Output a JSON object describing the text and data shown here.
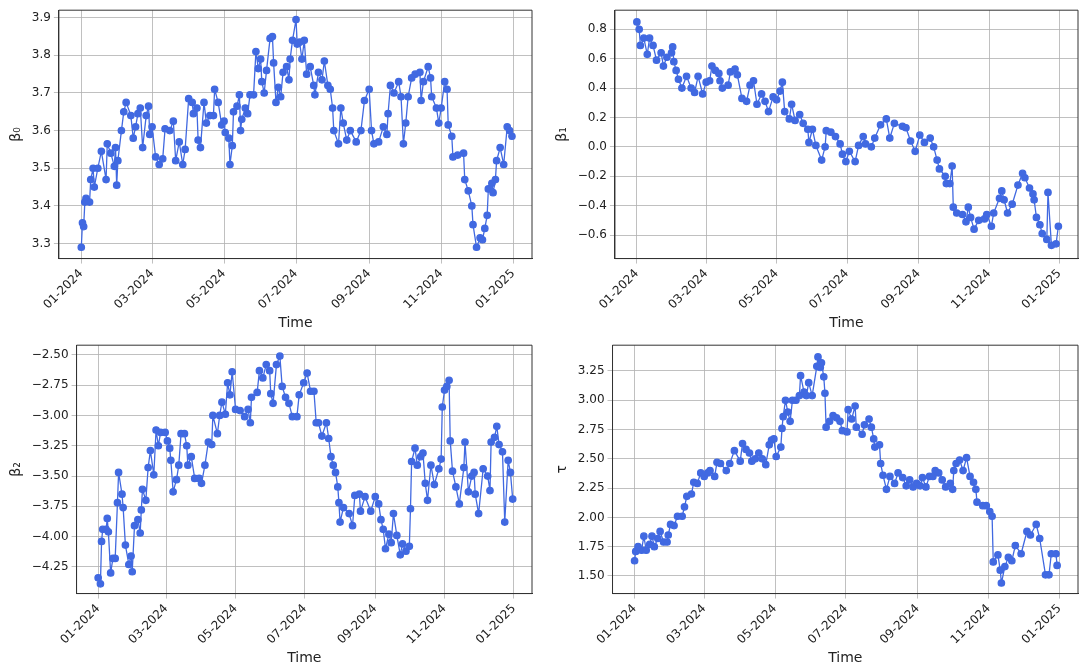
{
  "chart_data": [
    {
      "type": "line",
      "xlabel": "Time",
      "ylabel": "β₀",
      "grid": true,
      "marker": "circle",
      "line_style": "solid",
      "xlim": [
        "2023-12-13",
        "2025-01-17"
      ],
      "xticks": [
        {
          "value": "2024-01-01",
          "label": "01-2024"
        },
        {
          "value": "2024-03-01",
          "label": "03-2024"
        },
        {
          "value": "2024-05-01",
          "label": "05-2024"
        },
        {
          "value": "2024-07-01",
          "label": "07-2024"
        },
        {
          "value": "2024-09-01",
          "label": "09-2024"
        },
        {
          "value": "2024-11-01",
          "label": "11-2024"
        },
        {
          "value": "2025-01-01",
          "label": "01-2025"
        }
      ],
      "ylim": [
        3.26,
        3.92
      ],
      "yticks": [
        3.3,
        3.4,
        3.5,
        3.6,
        3.7,
        3.8,
        3.9
      ],
      "x": [
        "2024-01-01",
        "2024-01-02",
        "2024-01-03",
        "2024-01-04",
        "2024-01-05",
        "2024-01-08",
        "2024-01-09",
        "2024-01-11",
        "2024-01-12",
        "2024-01-15",
        "2024-01-18",
        "2024-01-22",
        "2024-01-23",
        "2024-01-26",
        "2024-01-29",
        "2024-01-30",
        "2024-01-31",
        "2024-02-01",
        "2024-02-04",
        "2024-02-06",
        "2024-02-08",
        "2024-02-12",
        "2024-02-14",
        "2024-02-16",
        "2024-02-18",
        "2024-02-20",
        "2024-02-22",
        "2024-02-25",
        "2024-02-27",
        "2024-02-28",
        "2024-03-01",
        "2024-03-04",
        "2024-03-07",
        "2024-03-10",
        "2024-03-12",
        "2024-03-16",
        "2024-03-19",
        "2024-03-21",
        "2024-03-24",
        "2024-03-27",
        "2024-03-29",
        "2024-04-01",
        "2024-04-04",
        "2024-04-05",
        "2024-04-08",
        "2024-04-09",
        "2024-04-11",
        "2024-04-14",
        "2024-04-16",
        "2024-04-19",
        "2024-04-22",
        "2024-04-23",
        "2024-04-26",
        "2024-04-29",
        "2024-05-01",
        "2024-05-02",
        "2024-05-05",
        "2024-05-06",
        "2024-05-08",
        "2024-05-09",
        "2024-05-12",
        "2024-05-14",
        "2024-05-15",
        "2024-05-16",
        "2024-05-19",
        "2024-05-21",
        "2024-05-23",
        "2024-05-26",
        "2024-05-28",
        "2024-05-30",
        "2024-06-01",
        "2024-06-02",
        "2024-06-04",
        "2024-06-06",
        "2024-06-09",
        "2024-06-11",
        "2024-06-12",
        "2024-06-14",
        "2024-06-16",
        "2024-06-18",
        "2024-06-20",
        "2024-06-23",
        "2024-06-25",
        "2024-06-26",
        "2024-06-28",
        "2024-07-01",
        "2024-07-02",
        "2024-07-04",
        "2024-07-06",
        "2024-07-08",
        "2024-07-10",
        "2024-07-13",
        "2024-07-16",
        "2024-07-17",
        "2024-07-20",
        "2024-07-23",
        "2024-07-25",
        "2024-07-28",
        "2024-07-30",
        "2024-08-01",
        "2024-08-02",
        "2024-08-06",
        "2024-08-08",
        "2024-08-10",
        "2024-08-13",
        "2024-08-16",
        "2024-08-21",
        "2024-08-25",
        "2024-08-28",
        "2024-09-01",
        "2024-09-03",
        "2024-09-05",
        "2024-09-09",
        "2024-09-13",
        "2024-09-16",
        "2024-09-17",
        "2024-09-19",
        "2024-09-22",
        "2024-09-26",
        "2024-09-28",
        "2024-09-30",
        "2024-10-02",
        "2024-10-04",
        "2024-10-07",
        "2024-10-10",
        "2024-10-14",
        "2024-10-15",
        "2024-10-17",
        "2024-10-21",
        "2024-10-23",
        "2024-10-24",
        "2024-10-28",
        "2024-10-30",
        "2024-11-01",
        "2024-11-04",
        "2024-11-06",
        "2024-11-07",
        "2024-11-10",
        "2024-11-11",
        "2024-11-15",
        "2024-11-20",
        "2024-11-21",
        "2024-11-24",
        "2024-11-27",
        "2024-11-28",
        "2024-12-01",
        "2024-12-04",
        "2024-12-06",
        "2024-12-08",
        "2024-12-10",
        "2024-12-11",
        "2024-12-14",
        "2024-12-15",
        "2024-12-17",
        "2024-12-18",
        "2024-12-21",
        "2024-12-24",
        "2024-12-27",
        "2024-12-29",
        "2024-12-31"
      ],
      "series": [
        {
          "color": "#4169e1",
          "values": [
            3.29,
            3.355,
            3.345,
            3.41,
            3.42,
            3.41,
            3.47,
            3.5,
            3.45,
            3.5,
            3.545,
            3.47,
            3.565,
            3.54,
            3.505,
            3.555,
            3.455,
            3.52,
            3.6,
            3.65,
            3.675,
            3.64,
            3.58,
            3.61,
            3.645,
            3.66,
            3.555,
            3.64,
            3.665,
            3.59,
            3.61,
            3.53,
            3.51,
            3.525,
            3.605,
            3.6,
            3.625,
            3.52,
            3.57,
            3.51,
            3.55,
            3.685,
            3.675,
            3.645,
            3.66,
            3.575,
            3.555,
            3.675,
            3.62,
            3.64,
            3.64,
            3.71,
            3.675,
            3.615,
            3.625,
            3.595,
            3.58,
            3.51,
            3.56,
            3.65,
            3.665,
            3.695,
            3.6,
            3.63,
            3.66,
            3.645,
            3.695,
            3.695,
            3.81,
            3.765,
            3.79,
            3.73,
            3.7,
            3.76,
            3.845,
            3.85,
            3.78,
            3.675,
            3.715,
            3.69,
            3.755,
            3.77,
            3.735,
            3.79,
            3.84,
            3.895,
            3.83,
            3.835,
            3.79,
            3.84,
            3.75,
            3.77,
            3.72,
            3.695,
            3.755,
            3.735,
            3.785,
            3.72,
            3.71,
            3.66,
            3.6,
            3.565,
            3.66,
            3.62,
            3.575,
            3.6,
            3.57,
            3.6,
            3.68,
            3.71,
            3.6,
            3.565,
            3.57,
            3.61,
            3.59,
            3.645,
            3.72,
            3.7,
            3.73,
            3.69,
            3.565,
            3.62,
            3.69,
            3.74,
            3.75,
            3.755,
            3.68,
            3.73,
            3.77,
            3.74,
            3.69,
            3.66,
            3.62,
            3.66,
            3.73,
            3.71,
            3.615,
            3.585,
            3.53,
            3.535,
            3.54,
            3.47,
            3.44,
            3.4,
            3.35,
            3.29,
            3.315,
            3.31,
            3.34,
            3.375,
            3.445,
            3.46,
            3.435,
            3.47,
            3.52,
            3.555,
            3.51,
            3.61,
            3.6,
            3.585
          ]
        }
      ]
    },
    {
      "type": "line",
      "xlabel": "Time",
      "ylabel": "β₁",
      "grid": true,
      "marker": "circle",
      "line_style": "solid",
      "xlim": [
        "2023-12-13",
        "2025-01-17"
      ],
      "xticks": [
        {
          "value": "2024-01-01",
          "label": "01-2024"
        },
        {
          "value": "2024-03-01",
          "label": "03-2024"
        },
        {
          "value": "2024-05-01",
          "label": "05-2024"
        },
        {
          "value": "2024-07-01",
          "label": "07-2024"
        },
        {
          "value": "2024-09-01",
          "label": "09-2024"
        },
        {
          "value": "2024-11-01",
          "label": "11-2024"
        },
        {
          "value": "2025-01-01",
          "label": "01-2025"
        }
      ],
      "ylim": [
        -0.76,
        0.93
      ],
      "yticks": [
        {
          "value": -0.6,
          "label": "−0.6"
        },
        {
          "value": -0.4,
          "label": "−0.4"
        },
        {
          "value": -0.2,
          "label": "−0.2"
        },
        {
          "value": 0,
          "label": "0.0"
        },
        {
          "value": 0.2,
          "label": "0.2"
        },
        {
          "value": 0.4,
          "label": "0.4"
        },
        {
          "value": 0.6,
          "label": "0.6"
        },
        {
          "value": 0.8,
          "label": "0.8"
        }
      ],
      "x": [
        "2024-01-01",
        "2024-01-03",
        "2024-01-04",
        "2024-01-07",
        "2024-01-10",
        "2024-01-12",
        "2024-01-15",
        "2024-01-18",
        "2024-01-22",
        "2024-01-24",
        "2024-01-27",
        "2024-01-31",
        "2024-02-01",
        "2024-02-02",
        "2024-02-04",
        "2024-02-06",
        "2024-02-09",
        "2024-02-13",
        "2024-02-17",
        "2024-02-20",
        "2024-02-23",
        "2024-02-27",
        "2024-03-01",
        "2024-03-04",
        "2024-03-06",
        "2024-03-09",
        "2024-03-12",
        "2024-03-13",
        "2024-03-15",
        "2024-03-20",
        "2024-03-22",
        "2024-03-26",
        "2024-03-28",
        "2024-04-01",
        "2024-04-05",
        "2024-04-08",
        "2024-04-11",
        "2024-04-14",
        "2024-04-18",
        "2024-04-21",
        "2024-04-24",
        "2024-04-28",
        "2024-05-01",
        "2024-05-04",
        "2024-05-06",
        "2024-05-08",
        "2024-05-12",
        "2024-05-14",
        "2024-05-17",
        "2024-05-21",
        "2024-05-24",
        "2024-05-28",
        "2024-05-29",
        "2024-06-01",
        "2024-06-04",
        "2024-06-09",
        "2024-06-12",
        "2024-06-13",
        "2024-06-17",
        "2024-06-21",
        "2024-06-25",
        "2024-06-27",
        "2024-06-30",
        "2024-07-03",
        "2024-07-08",
        "2024-07-11",
        "2024-07-15",
        "2024-07-17",
        "2024-07-22",
        "2024-07-25",
        "2024-07-30",
        "2024-08-04",
        "2024-08-07",
        "2024-08-11",
        "2024-08-18",
        "2024-08-21",
        "2024-08-25",
        "2024-08-29",
        "2024-09-02",
        "2024-09-06",
        "2024-09-11",
        "2024-09-14",
        "2024-09-17",
        "2024-09-19",
        "2024-09-24",
        "2024-09-25",
        "2024-09-28",
        "2024-09-30",
        "2024-10-01",
        "2024-10-04",
        "2024-10-09",
        "2024-10-12",
        "2024-10-14",
        "2024-10-16",
        "2024-10-19",
        "2024-10-23",
        "2024-10-28",
        "2024-10-30",
        "2024-11-03",
        "2024-11-05",
        "2024-11-10",
        "2024-11-12",
        "2024-11-14",
        "2024-11-17",
        "2024-11-21",
        "2024-11-26",
        "2024-11-30",
        "2024-12-02",
        "2024-12-06",
        "2024-12-09",
        "2024-12-10",
        "2024-12-12",
        "2024-12-15",
        "2024-12-17",
        "2024-12-21",
        "2024-12-22",
        "2024-12-25",
        "2024-12-29",
        "2024-12-31"
      ],
      "series": [
        {
          "color": "#4169e1",
          "values": [
            0.85,
            0.8,
            0.69,
            0.74,
            0.63,
            0.74,
            0.69,
            0.59,
            0.64,
            0.55,
            0.61,
            0.64,
            0.68,
            0.58,
            0.52,
            0.46,
            0.4,
            0.48,
            0.4,
            0.37,
            0.48,
            0.36,
            0.44,
            0.45,
            0.55,
            0.52,
            0.5,
            0.45,
            0.4,
            0.42,
            0.51,
            0.53,
            0.49,
            0.33,
            0.31,
            0.42,
            0.45,
            0.29,
            0.36,
            0.31,
            0.24,
            0.34,
            0.32,
            0.38,
            0.44,
            0.24,
            0.19,
            0.29,
            0.18,
            0.22,
            0.16,
            0.12,
            0.03,
            0.12,
            0.01,
            -0.09,
            0.0,
            0.11,
            0.1,
            0.07,
            0.02,
            -0.05,
            -0.1,
            -0.03,
            -0.1,
            0.01,
            0.07,
            0.02,
            0.0,
            0.06,
            0.15,
            0.19,
            0.06,
            0.16,
            0.14,
            0.13,
            0.04,
            -0.03,
            0.08,
            0.03,
            0.06,
            0.0,
            -0.09,
            -0.15,
            -0.2,
            -0.25,
            -0.25,
            -0.13,
            -0.41,
            -0.45,
            -0.46,
            -0.51,
            -0.41,
            -0.48,
            -0.56,
            -0.5,
            -0.49,
            -0.46,
            -0.54,
            -0.45,
            -0.35,
            -0.3,
            -0.36,
            -0.45,
            -0.39,
            -0.26,
            -0.18,
            -0.21,
            -0.28,
            -0.32,
            -0.36,
            -0.48,
            -0.53,
            -0.59,
            -0.63,
            -0.31,
            -0.67,
            -0.66,
            -0.54
          ]
        }
      ]
    },
    {
      "type": "line",
      "xlabel": "Time",
      "ylabel": "β₂",
      "grid": true,
      "marker": "circle",
      "line_style": "solid",
      "xlim": [
        "2023-12-13",
        "2025-01-17"
      ],
      "xticks": [
        {
          "value": "2024-01-01",
          "label": "01-2024"
        },
        {
          "value": "2024-03-01",
          "label": "03-2024"
        },
        {
          "value": "2024-05-01",
          "label": "05-2024"
        },
        {
          "value": "2024-07-01",
          "label": "07-2024"
        },
        {
          "value": "2024-09-01",
          "label": "09-2024"
        },
        {
          "value": "2024-11-01",
          "label": "11-2024"
        },
        {
          "value": "2025-01-01",
          "label": "01-2025"
        }
      ],
      "ylim": [
        -4.47,
        -2.42
      ],
      "yticks": [
        {
          "value": -4.25,
          "label": "−4.25"
        },
        {
          "value": -4,
          "label": "−4.00"
        },
        {
          "value": -3.75,
          "label": "−3.75"
        },
        {
          "value": -3.5,
          "label": "−3.50"
        },
        {
          "value": -3.25,
          "label": "−3.25"
        },
        {
          "value": -3,
          "label": "−3.00"
        },
        {
          "value": -2.75,
          "label": "−2.75"
        },
        {
          "value": -2.5,
          "label": "−2.50"
        }
      ],
      "x": [
        "2024-01-01",
        "2024-01-03",
        "2024-01-04",
        "2024-01-05",
        "2024-01-08",
        "2024-01-09",
        "2024-01-10",
        "2024-01-12",
        "2024-01-14",
        "2024-01-16",
        "2024-01-18",
        "2024-01-19",
        "2024-01-22",
        "2024-01-23",
        "2024-01-25",
        "2024-01-28",
        "2024-01-30",
        "2024-01-31",
        "2024-02-02",
        "2024-02-05",
        "2024-02-07",
        "2024-02-08",
        "2024-02-09",
        "2024-02-12",
        "2024-02-14",
        "2024-02-16",
        "2024-02-19",
        "2024-02-21",
        "2024-02-23",
        "2024-02-25",
        "2024-02-29",
        "2024-03-02",
        "2024-03-04",
        "2024-03-05",
        "2024-03-07",
        "2024-03-10",
        "2024-03-12",
        "2024-03-14",
        "2024-03-17",
        "2024-03-19",
        "2024-03-20",
        "2024-03-23",
        "2024-03-26",
        "2024-03-30",
        "2024-04-01",
        "2024-04-04",
        "2024-04-07",
        "2024-04-10",
        "2024-04-11",
        "2024-04-15",
        "2024-04-17",
        "2024-04-19",
        "2024-04-22",
        "2024-04-24",
        "2024-04-26",
        "2024-04-28",
        "2024-05-01",
        "2024-05-05",
        "2024-05-09",
        "2024-05-12",
        "2024-05-14",
        "2024-05-15",
        "2024-05-20",
        "2024-05-22",
        "2024-05-25",
        "2024-05-28",
        "2024-05-31",
        "2024-06-01",
        "2024-06-03",
        "2024-06-06",
        "2024-06-09",
        "2024-06-11",
        "2024-06-14",
        "2024-06-17",
        "2024-06-20",
        "2024-06-24",
        "2024-06-26",
        "2024-06-30",
        "2024-07-03",
        "2024-07-06",
        "2024-07-09",
        "2024-07-11",
        "2024-07-13",
        "2024-07-16",
        "2024-07-20",
        "2024-07-22",
        "2024-07-24",
        "2024-07-26",
        "2024-07-28",
        "2024-07-30",
        "2024-07-31",
        "2024-08-01",
        "2024-08-04",
        "2024-08-09",
        "2024-08-12",
        "2024-08-14",
        "2024-08-18",
        "2024-08-19",
        "2024-08-23",
        "2024-08-28",
        "2024-09-01",
        "2024-09-04",
        "2024-09-06",
        "2024-09-08",
        "2024-09-10",
        "2024-09-13",
        "2024-09-15",
        "2024-09-17",
        "2024-09-20",
        "2024-09-23",
        "2024-09-25",
        "2024-09-28",
        "2024-10-01",
        "2024-10-02",
        "2024-10-03",
        "2024-10-06",
        "2024-10-08",
        "2024-10-11",
        "2024-10-13",
        "2024-10-15",
        "2024-10-17",
        "2024-10-20",
        "2024-10-23",
        "2024-10-27",
        "2024-10-29",
        "2024-10-30",
        "2024-11-01",
        "2024-11-03",
        "2024-11-05",
        "2024-11-06",
        "2024-11-08",
        "2024-11-11",
        "2024-11-14",
        "2024-11-18",
        "2024-11-19",
        "2024-11-22",
        "2024-11-25",
        "2024-11-27",
        "2024-11-28",
        "2024-12-01",
        "2024-12-05",
        "2024-12-09",
        "2024-12-11",
        "2024-12-12",
        "2024-12-15",
        "2024-12-17",
        "2024-12-19",
        "2024-12-22",
        "2024-12-24",
        "2024-12-27",
        "2024-12-29",
        "2024-12-31"
      ],
      "series": [
        {
          "color": "#4169e1",
          "values": [
            -4.34,
            -4.39,
            -4.04,
            -3.94,
            -3.94,
            -3.85,
            -3.96,
            -4.3,
            -4.18,
            -4.18,
            -3.72,
            -3.47,
            -3.65,
            -3.76,
            -4.07,
            -4.23,
            -4.16,
            -4.29,
            -3.91,
            -3.86,
            -3.97,
            -3.78,
            -3.61,
            -3.7,
            -3.43,
            -3.29,
            -3.49,
            -3.12,
            -3.25,
            -3.14,
            -3.14,
            -3.21,
            -3.27,
            -3.37,
            -3.63,
            -3.53,
            -3.41,
            -3.15,
            -3.15,
            -3.25,
            -3.41,
            -3.34,
            -3.52,
            -3.52,
            -3.56,
            -3.41,
            -3.22,
            -3.24,
            -3.0,
            -3.15,
            -3.0,
            -2.89,
            -2.99,
            -2.73,
            -2.83,
            -2.64,
            -2.95,
            -2.96,
            -3.01,
            -2.95,
            -3.06,
            -2.85,
            -2.81,
            -2.63,
            -2.69,
            -2.58,
            -2.63,
            -2.82,
            -2.9,
            -2.58,
            -2.51,
            -2.76,
            -2.85,
            -2.9,
            -3.01,
            -3.01,
            -2.83,
            -2.73,
            -2.65,
            -2.8,
            -2.8,
            -3.06,
            -3.06,
            -3.17,
            -3.06,
            -3.19,
            -3.34,
            -3.41,
            -3.47,
            -3.59,
            -3.72,
            -3.88,
            -3.76,
            -3.81,
            -3.91,
            -3.66,
            -3.65,
            -3.79,
            -3.67,
            -3.79,
            -3.67,
            -3.73,
            -3.86,
            -3.94,
            -4.1,
            -3.98,
            -4.05,
            -3.81,
            -3.99,
            -4.15,
            -4.06,
            -4.12,
            -4.08,
            -3.77,
            -3.38,
            -3.27,
            -3.41,
            -3.34,
            -3.31,
            -3.56,
            -3.7,
            -3.41,
            -3.57,
            -3.44,
            -3.36,
            -2.93,
            -2.79,
            -2.76,
            -2.71,
            -3.21,
            -3.46,
            -3.59,
            -3.73,
            -3.43,
            -3.22,
            -3.63,
            -3.5,
            -3.47,
            -3.65,
            -3.81,
            -3.44,
            -3.5,
            -3.62,
            -3.22,
            -3.18,
            -3.09,
            -3.24,
            -3.3,
            -3.88,
            -3.37,
            -3.47,
            -3.69
          ]
        }
      ]
    },
    {
      "type": "line",
      "xlabel": "Time",
      "ylabel": "τ",
      "grid": true,
      "marker": "circle",
      "line_style": "solid",
      "xlim": [
        "2023-12-13",
        "2025-01-17"
      ],
      "xticks": [
        {
          "value": "2024-01-01",
          "label": "01-2024"
        },
        {
          "value": "2024-03-01",
          "label": "03-2024"
        },
        {
          "value": "2024-05-01",
          "label": "05-2024"
        },
        {
          "value": "2024-07-01",
          "label": "07-2024"
        },
        {
          "value": "2024-09-01",
          "label": "09-2024"
        },
        {
          "value": "2024-11-01",
          "label": "11-2024"
        },
        {
          "value": "2025-01-01",
          "label": "01-2025"
        }
      ],
      "ylim": [
        1.35,
        3.47
      ],
      "yticks": [
        {
          "value": 1.5,
          "label": "1.50"
        },
        {
          "value": 1.75,
          "label": "1.75"
        },
        {
          "value": 2,
          "label": "2.00"
        },
        {
          "value": 2.25,
          "label": "2.25"
        },
        {
          "value": 2.5,
          "label": "2.50"
        },
        {
          "value": 2.75,
          "label": "2.75"
        },
        {
          "value": 3,
          "label": "3.00"
        },
        {
          "value": 3.25,
          "label": "3.25"
        }
      ],
      "x": [
        "2024-01-01",
        "2024-01-02",
        "2024-01-04",
        "2024-01-07",
        "2024-01-09",
        "2024-01-11",
        "2024-01-14",
        "2024-01-16",
        "2024-01-18",
        "2024-01-21",
        "2024-01-23",
        "2024-01-26",
        "2024-01-29",
        "2024-01-30",
        "2024-02-01",
        "2024-02-04",
        "2024-02-07",
        "2024-02-11",
        "2024-02-13",
        "2024-02-15",
        "2024-02-19",
        "2024-02-21",
        "2024-02-24",
        "2024-02-27",
        "2024-03-01",
        "2024-03-04",
        "2024-03-06",
        "2024-03-10",
        "2024-03-12",
        "2024-03-15",
        "2024-03-20",
        "2024-03-23",
        "2024-03-27",
        "2024-04-01",
        "2024-04-03",
        "2024-04-06",
        "2024-04-09",
        "2024-04-11",
        "2024-04-14",
        "2024-04-17",
        "2024-04-20",
        "2024-04-23",
        "2024-04-26",
        "2024-04-28",
        "2024-04-30",
        "2024-05-02",
        "2024-05-06",
        "2024-05-07",
        "2024-05-08",
        "2024-05-10",
        "2024-05-12",
        "2024-05-14",
        "2024-05-16",
        "2024-05-19",
        "2024-05-22",
        "2024-05-23",
        "2024-05-26",
        "2024-05-28",
        "2024-05-30",
        "2024-06-02",
        "2024-06-06",
        "2024-06-07",
        "2024-06-09",
        "2024-06-10",
        "2024-06-12",
        "2024-06-13",
        "2024-06-14",
        "2024-06-17",
        "2024-06-20",
        "2024-06-23",
        "2024-06-26",
        "2024-06-28",
        "2024-07-02",
        "2024-07-03",
        "2024-07-06",
        "2024-07-09",
        "2024-07-10",
        "2024-07-15",
        "2024-07-17",
        "2024-07-21",
        "2024-07-23",
        "2024-07-25",
        "2024-07-26",
        "2024-07-30",
        "2024-07-31",
        "2024-08-02",
        "2024-08-05",
        "2024-08-08",
        "2024-08-12",
        "2024-08-15",
        "2024-08-19",
        "2024-08-22",
        "2024-08-25",
        "2024-08-28",
        "2024-08-31",
        "2024-09-03",
        "2024-09-05",
        "2024-09-08",
        "2024-09-11",
        "2024-09-14",
        "2024-09-16",
        "2024-09-19",
        "2024-09-22",
        "2024-09-25",
        "2024-09-29",
        "2024-10-01",
        "2024-10-02",
        "2024-10-04",
        "2024-10-07",
        "2024-10-10",
        "2024-10-13",
        "2024-10-16",
        "2024-10-19",
        "2024-10-21",
        "2024-10-22",
        "2024-10-27",
        "2024-10-30",
        "2024-11-02",
        "2024-11-04",
        "2024-11-05",
        "2024-11-09",
        "2024-11-11",
        "2024-11-12",
        "2024-11-15",
        "2024-11-18",
        "2024-11-21",
        "2024-11-24",
        "2024-11-29",
        "2024-12-04",
        "2024-12-07",
        "2024-12-12",
        "2024-12-15",
        "2024-12-20",
        "2024-12-23",
        "2024-12-25",
        "2024-12-29",
        "2024-12-30"
      ],
      "series": [
        {
          "color": "#4169e1",
          "values": [
            1.63,
            1.71,
            1.75,
            1.72,
            1.84,
            1.72,
            1.77,
            1.84,
            1.75,
            1.82,
            1.88,
            1.79,
            1.79,
            1.85,
            1.94,
            1.93,
            2.01,
            2.01,
            2.09,
            2.18,
            2.2,
            2.3,
            2.29,
            2.38,
            2.35,
            2.38,
            2.4,
            2.35,
            2.47,
            2.46,
            2.4,
            2.46,
            2.57,
            2.48,
            2.63,
            2.58,
            2.55,
            2.48,
            2.5,
            2.55,
            2.5,
            2.45,
            2.62,
            2.66,
            2.67,
            2.52,
            2.6,
            2.76,
            2.86,
            3.0,
            2.9,
            2.82,
            3.0,
            3.0,
            3.04,
            3.21,
            3.07,
            3.04,
            3.15,
            3.04,
            3.29,
            3.37,
            3.28,
            3.32,
            3.2,
            3.06,
            2.77,
            2.82,
            2.87,
            2.85,
            2.82,
            2.74,
            2.73,
            2.92,
            2.84,
            2.95,
            2.77,
            2.71,
            2.79,
            2.84,
            2.77,
            2.67,
            2.6,
            2.62,
            2.46,
            2.36,
            2.24,
            2.35,
            2.29,
            2.38,
            2.34,
            2.27,
            2.32,
            2.26,
            2.29,
            2.27,
            2.34,
            2.26,
            2.35,
            2.35,
            2.4,
            2.38,
            2.32,
            2.26,
            2.29,
            2.24,
            2.4,
            2.46,
            2.49,
            2.4,
            2.51,
            2.35,
            2.3,
            2.24,
            2.13,
            2.1,
            2.1,
            2.05,
            2.01,
            1.62,
            1.68,
            1.55,
            1.44,
            1.58,
            1.66,
            1.63,
            1.76,
            1.69,
            1.88,
            1.85,
            1.94,
            1.82,
            1.51,
            1.51,
            1.69,
            1.69,
            1.59
          ]
        }
      ]
    }
  ]
}
